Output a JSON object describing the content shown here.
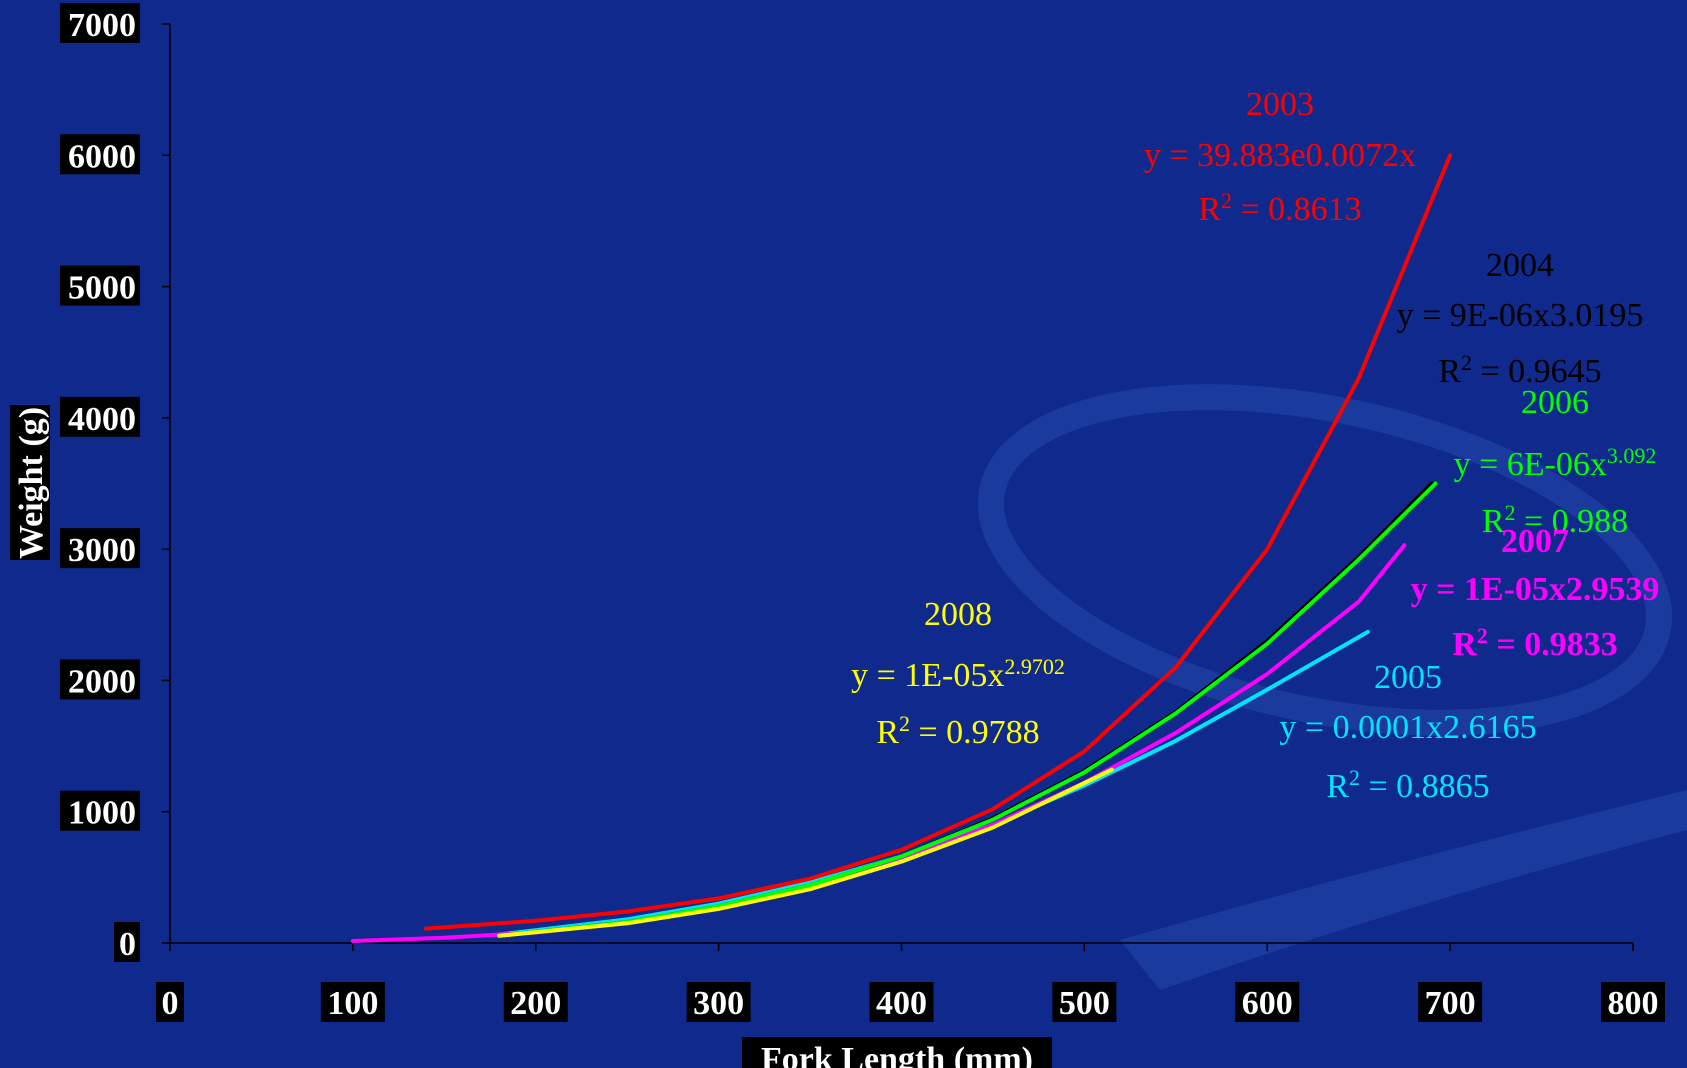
{
  "chart_data": {
    "type": "line",
    "xlabel": "Fork Length (mm)",
    "ylabel": "Weight (g)",
    "xlim": [
      0,
      800
    ],
    "ylim": [
      0,
      7000
    ],
    "x_ticks": [
      "0",
      "100",
      "200",
      "300",
      "400",
      "500",
      "600",
      "700",
      "800"
    ],
    "y_ticks": [
      "0",
      "1000",
      "2000",
      "3000",
      "4000",
      "5000",
      "6000",
      "7000"
    ],
    "grid": false,
    "series": [
      {
        "name": "2003",
        "color": "#ff0000",
        "equation": "y = 39.883e0.0072x",
        "r2_label": "R",
        "r2_sup": "2",
        "r2_value": " = 0.8613",
        "x": [
          140,
          200,
          250,
          300,
          350,
          400,
          450,
          500,
          550,
          600,
          650,
          700
        ],
        "y": [
          110,
          170,
          240,
          340,
          490,
          710,
          1020,
          1460,
          2100,
          3000,
          4300,
          6000
        ]
      },
      {
        "name": "2004",
        "color": "#000000",
        "equation": "y = 9E-06x3.0195",
        "r2_label": "R",
        "r2_sup": "2",
        "r2_value": " = 0.9645",
        "x": [
          180,
          250,
          300,
          350,
          400,
          450,
          500,
          550,
          600,
          650,
          690
        ],
        "y": [
          55,
          160,
          280,
          440,
          660,
          950,
          1310,
          1760,
          2300,
          2940,
          3500
        ]
      },
      {
        "name": "2005",
        "color": "#00e5ff",
        "equation": "y = 0.0001x2.6165",
        "r2_label": "R",
        "r2_sup": "2",
        "r2_value": " = 0.8865",
        "x": [
          180,
          250,
          300,
          350,
          400,
          450,
          500,
          550,
          600,
          655
        ],
        "y": [
          65,
          180,
          300,
          460,
          660,
          900,
          1200,
          1540,
          1930,
          2370
        ]
      },
      {
        "name": "2006",
        "color": "#00ff00",
        "equation_main": "y = 6E-06x",
        "equation_exp": "3.092",
        "r2_label": "R",
        "r2_sup": "2",
        "r2_value": " = 0.988",
        "x": [
          180,
          250,
          300,
          350,
          400,
          450,
          500,
          550,
          600,
          650,
          692
        ],
        "y": [
          55,
          160,
          280,
          440,
          660,
          940,
          1300,
          1750,
          2280,
          2920,
          3500
        ]
      },
      {
        "name": "2007",
        "color": "#ff00ff",
        "equation": "y = 1E-05x2.9539",
        "r2_label": "R",
        "r2_sup": "2",
        "r2_value": " = 0.9833",
        "x": [
          100,
          150,
          200,
          250,
          300,
          350,
          400,
          450,
          500,
          550,
          600,
          650,
          675
        ],
        "y": [
          15,
          40,
          80,
          160,
          280,
          440,
          640,
          900,
          1220,
          1600,
          2050,
          2600,
          3030
        ]
      },
      {
        "name": "2008",
        "color": "#ffff00",
        "equation_main": "y = 1E-05x",
        "equation_exp": "2.9702",
        "r2_label": "R",
        "r2_sup": "2",
        "r2_value": " = 0.9788",
        "x": [
          180,
          250,
          300,
          350,
          400,
          450,
          515
        ],
        "y": [
          55,
          150,
          260,
          410,
          620,
          880,
          1320
        ]
      }
    ]
  }
}
